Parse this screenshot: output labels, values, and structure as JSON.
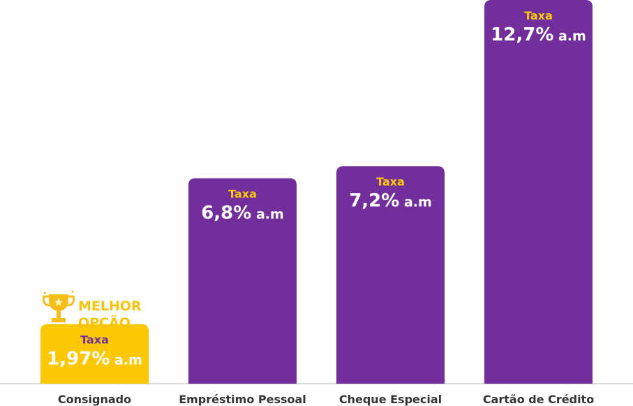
{
  "chart_data": {
    "type": "bar",
    "categories": [
      "Consignado",
      "Empréstimo Pessoal",
      "Cheque Especial",
      "Cartão de Crédito"
    ],
    "values": [
      1.97,
      6.8,
      7.2,
      12.7
    ],
    "value_labels": [
      "1,97%",
      "6,8%",
      "7,2%",
      "12,7%"
    ],
    "unit_suffix": "a.m",
    "rate_caption": "Taxa",
    "title": "",
    "xlabel": "",
    "ylabel": "",
    "ylim": [
      0,
      12.7
    ],
    "grid": false,
    "highlight": {
      "category_index": 0,
      "badge_line1": "MELHOR",
      "badge_line2": "OPÇÃO",
      "icon": "trophy-icon"
    }
  },
  "colors": {
    "bar": "#722f9c",
    "highlight_bar": "#fcc806",
    "caption_on_bar": "#fcc806",
    "caption_on_highlight": "#722f9c",
    "value_on_bar": "#ffffff",
    "badge_text": "#f8c40a",
    "category_text": "#333333",
    "baseline": "#d9d9d9"
  }
}
